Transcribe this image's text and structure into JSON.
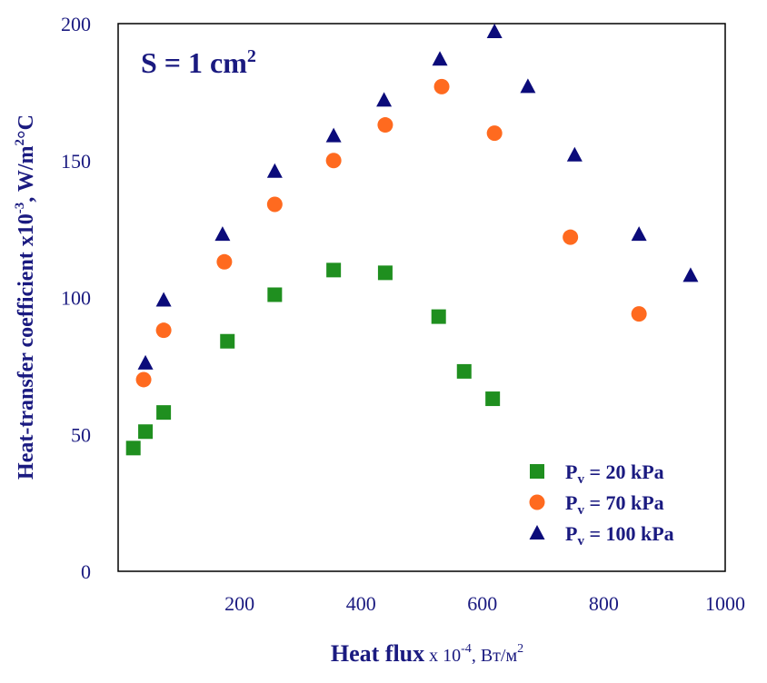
{
  "chart_data": {
    "type": "scatter",
    "title": "",
    "annotation": {
      "prefix": "S = 1 cm",
      "sup": "2"
    },
    "xlabel": {
      "main": "Heat flux",
      "small": " x 10",
      "sup": "-4",
      "unit": ", Вт/м",
      "unit_sup": "2"
    },
    "ylabel": {
      "main": "Heat-transfer coefficient x10",
      "sup": "-3",
      "unit": ", W/m",
      "unit_sup": "2",
      "tail": "°C"
    },
    "xlim": [
      0,
      1000
    ],
    "ylim": [
      0,
      200
    ],
    "xticks": [
      200,
      400,
      600,
      800,
      1000
    ],
    "yticks": [
      0,
      50,
      100,
      150,
      200
    ],
    "grid": false,
    "legend_position": "bottom-right",
    "series": [
      {
        "name": "P",
        "subscript": "v",
        "label_rest": " = 20 kPa",
        "marker": "square",
        "color": "#1f8f1f",
        "x": [
          25,
          45,
          75,
          180,
          258,
          355,
          440,
          528,
          570,
          617
        ],
        "y": [
          45,
          51,
          58,
          84,
          101,
          110,
          109,
          93,
          73,
          63
        ]
      },
      {
        "name": "P",
        "subscript": "v",
        "label_rest": " = 70 kPa",
        "marker": "circle",
        "color": "#ff6a1f",
        "x": [
          42,
          75,
          175,
          258,
          355,
          440,
          533,
          620,
          745,
          858
        ],
        "y": [
          70,
          88,
          113,
          134,
          150,
          163,
          177,
          160,
          122,
          94
        ]
      },
      {
        "name": "P",
        "subscript": "v",
        "label_rest": " = 100 kPa",
        "marker": "triangle",
        "color": "#0b0b7a",
        "x": [
          45,
          75,
          172,
          258,
          355,
          438,
          530,
          620,
          675,
          752,
          858,
          943
        ],
        "y": [
          76,
          99,
          123,
          146,
          159,
          172,
          187,
          197,
          177,
          152,
          123,
          108
        ]
      }
    ]
  }
}
